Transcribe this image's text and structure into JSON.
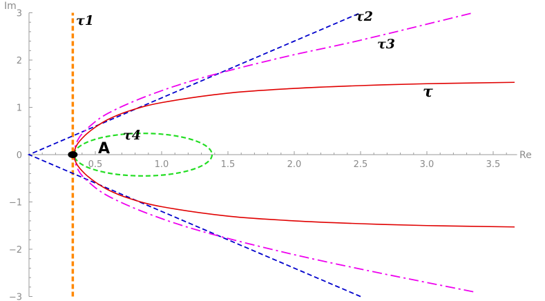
{
  "chart_data": {
    "type": "line",
    "title": "",
    "xlabel": "Re",
    "ylabel": "Im",
    "xlim": [
      0,
      3.68
    ],
    "ylim": [
      -3,
      3
    ],
    "x_ticks": [
      0.5,
      1.0,
      1.5,
      2.0,
      2.5,
      3.0,
      3.5
    ],
    "x_tick_labels": [
      "0.5",
      "1.0",
      "1.5",
      "2.0",
      "2.5",
      "3.0",
      "3.5"
    ],
    "y_ticks": [
      -3,
      -2,
      -1,
      0,
      1,
      2,
      3
    ],
    "y_tick_labels": [
      "−3",
      "−2",
      "−1",
      "0",
      "1",
      "2",
      "3"
    ],
    "grid": false,
    "series": [
      {
        "name": "τ",
        "color": "#e00000",
        "style": "solid",
        "points": [
          [
            3.68,
            -1.53
          ],
          [
            3.0,
            -1.5
          ],
          [
            2.5,
            -1.46
          ],
          [
            2.0,
            -1.4
          ],
          [
            1.5,
            -1.3
          ],
          [
            1.0,
            -1.1
          ],
          [
            0.75,
            -0.92
          ],
          [
            0.6,
            -0.75
          ],
          [
            0.5,
            -0.58
          ],
          [
            0.42,
            -0.4
          ],
          [
            0.36,
            -0.2
          ],
          [
            0.34,
            0.0
          ],
          [
            0.36,
            0.2
          ],
          [
            0.42,
            0.4
          ],
          [
            0.5,
            0.58
          ],
          [
            0.6,
            0.75
          ],
          [
            0.75,
            0.92
          ],
          [
            1.0,
            1.1
          ],
          [
            1.5,
            1.3
          ],
          [
            2.0,
            1.4
          ],
          [
            2.5,
            1.46
          ],
          [
            3.0,
            1.5
          ],
          [
            3.68,
            1.53
          ]
        ]
      },
      {
        "name": "τ1",
        "color": "#ff8800",
        "style": "dashed",
        "points": [
          [
            0.33,
            -3.0
          ],
          [
            0.33,
            3.0
          ]
        ]
      },
      {
        "name": "τ2",
        "color": "#0000cc",
        "style": "dashed",
        "points": [
          [
            2.5,
            -3.0
          ],
          [
            0.0,
            0.0
          ],
          [
            2.5,
            3.0
          ]
        ]
      },
      {
        "name": "τ3",
        "color": "#ee00ee",
        "style": "dashdot",
        "points": [
          [
            3.35,
            -2.9
          ],
          [
            2.5,
            -2.42
          ],
          [
            1.9,
            -2.05
          ],
          [
            1.3,
            -1.62
          ],
          [
            0.9,
            -1.25
          ],
          [
            0.6,
            -0.88
          ],
          [
            0.45,
            -0.58
          ],
          [
            0.37,
            -0.32
          ],
          [
            0.34,
            0.0
          ],
          [
            0.37,
            0.32
          ],
          [
            0.45,
            0.58
          ],
          [
            0.6,
            0.88
          ],
          [
            0.9,
            1.25
          ],
          [
            1.3,
            1.62
          ],
          [
            1.9,
            2.05
          ],
          [
            2.5,
            2.42
          ],
          [
            3.35,
            3.0
          ]
        ]
      },
      {
        "name": "τ4",
        "color": "#22dd22",
        "style": "dashed",
        "shape": "ellipse",
        "center": [
          0.86,
          0.0
        ],
        "semi_axes": [
          0.52,
          0.45
        ]
      }
    ],
    "annotations": [
      {
        "text": "A",
        "x": 0.42,
        "y": 0.1
      }
    ],
    "marker": {
      "x": 0.33,
      "y": 0.0,
      "color": "#000000"
    }
  }
}
